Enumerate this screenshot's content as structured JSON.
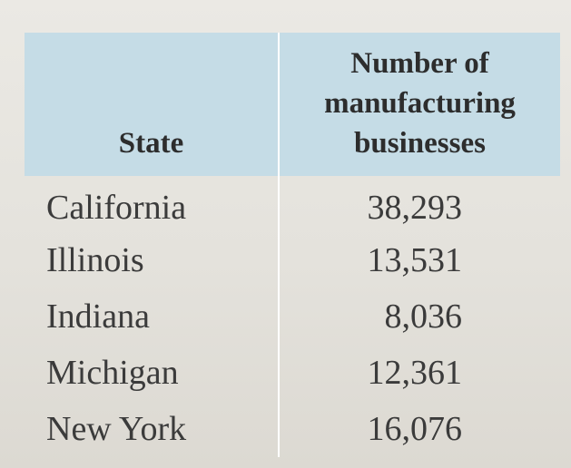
{
  "table": {
    "headers": {
      "state": "State",
      "number_line1": "Number of",
      "number_line2": "manufacturing",
      "number_line3": "businesses"
    },
    "rows": [
      {
        "state": "California",
        "number": "38,293"
      },
      {
        "state": "Illinois",
        "number": "13,531"
      },
      {
        "state": "Indiana",
        "number": "8,036"
      },
      {
        "state": "Michigan",
        "number": "12,361"
      },
      {
        "state": "New York",
        "number": "16,076"
      }
    ]
  }
}
